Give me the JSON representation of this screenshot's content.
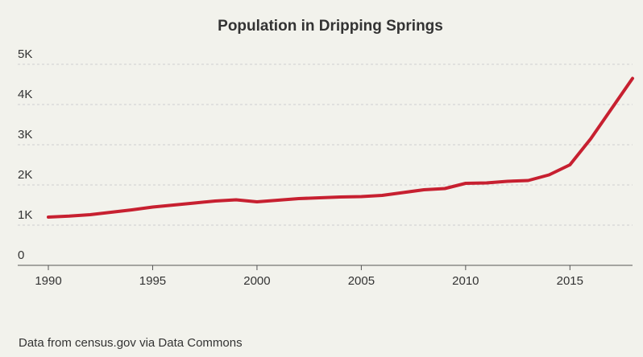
{
  "footer": {
    "source_text": "Data from census.gov via Data Commons"
  },
  "colors": {
    "line": "#c72030",
    "grid": "#cfcfcf",
    "axis": "#555555",
    "background": "#f2f2ec",
    "text": "#333333"
  },
  "chart_data": {
    "type": "line",
    "title": "Population in Dripping Springs",
    "xlabel": "",
    "ylabel": "",
    "xlim": [
      1990,
      2018
    ],
    "ylim": [
      0,
      5000
    ],
    "x_ticks": [
      1990,
      1995,
      2000,
      2005,
      2010,
      2015
    ],
    "x_tick_labels": [
      "1990",
      "1995",
      "2000",
      "2005",
      "2010",
      "2015"
    ],
    "y_ticks": [
      0,
      1000,
      2000,
      3000,
      4000,
      5000
    ],
    "y_tick_labels": [
      "0",
      "1K",
      "2K",
      "3K",
      "4K",
      "5K"
    ],
    "grid": true,
    "legend": "none",
    "series": [
      {
        "color": "#c72030",
        "x": [
          1990,
          1991,
          1992,
          1993,
          1994,
          1995,
          1996,
          1997,
          1998,
          1999,
          2000,
          2001,
          2002,
          2003,
          2004,
          2005,
          2006,
          2007,
          2008,
          2009,
          2010,
          2011,
          2012,
          2013,
          2014,
          2015,
          2016,
          2017,
          2018
        ],
        "values": [
          1200,
          1225,
          1260,
          1320,
          1380,
          1450,
          1500,
          1550,
          1600,
          1630,
          1580,
          1620,
          1660,
          1680,
          1700,
          1710,
          1740,
          1810,
          1880,
          1910,
          2040,
          2050,
          2090,
          2110,
          2250,
          2500,
          3150,
          3900,
          4650
        ]
      }
    ]
  }
}
